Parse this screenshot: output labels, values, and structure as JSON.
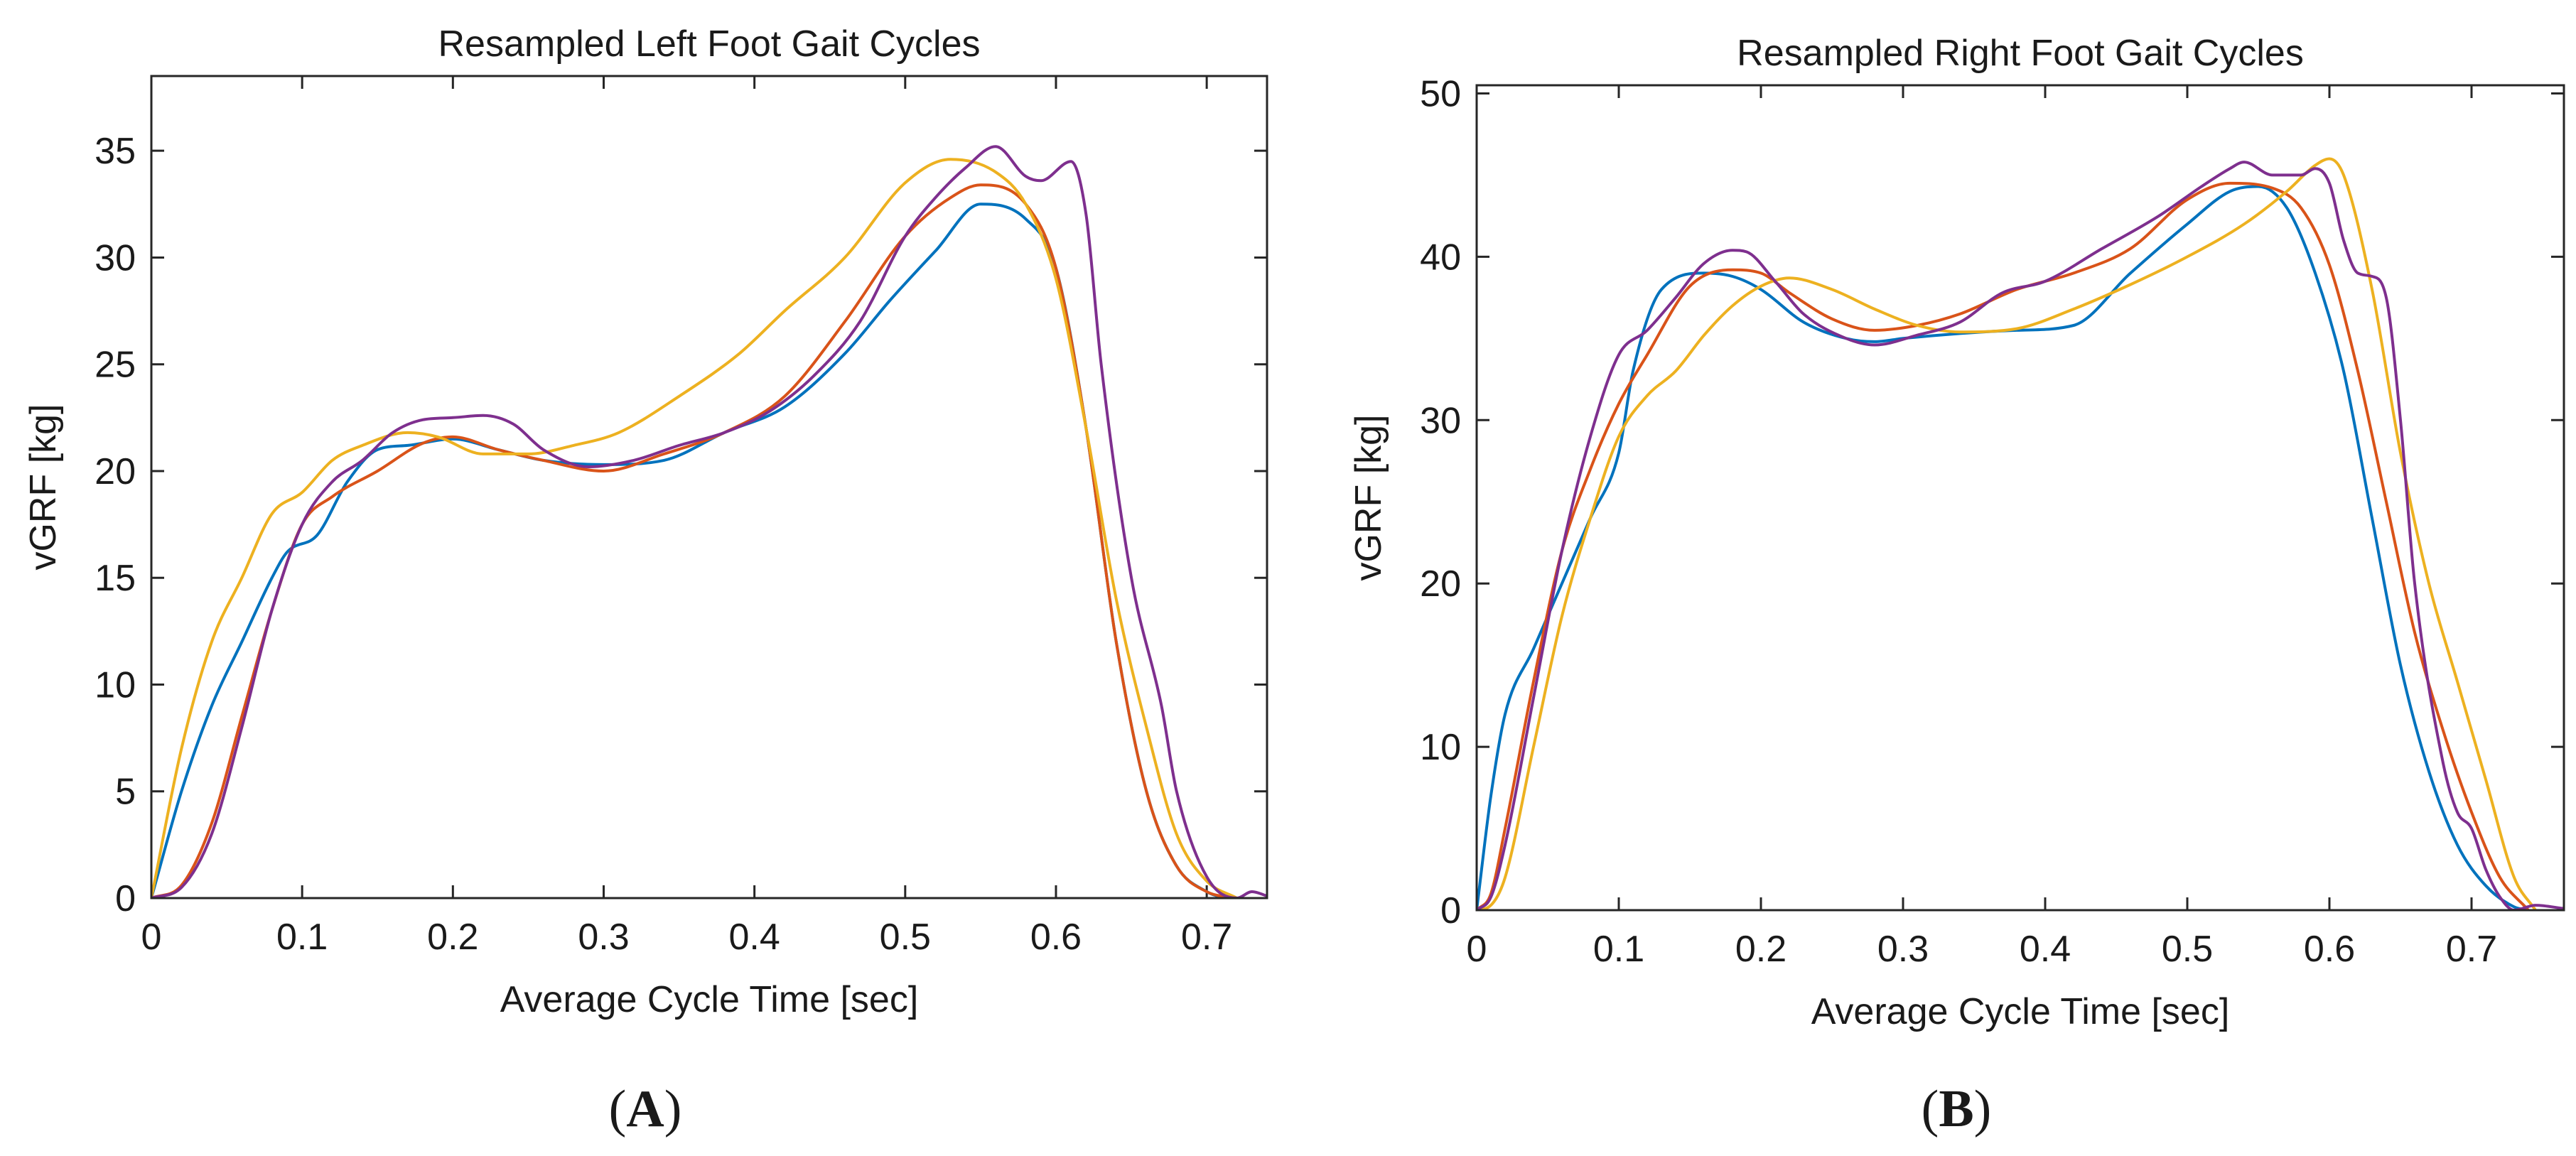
{
  "colors": {
    "blue": "#0072BD",
    "red": "#D95319",
    "yellow": "#EDB120",
    "purple": "#7E2F8E"
  },
  "panels": [
    {
      "label_open": "(",
      "label_letter": "A",
      "label_close": ")"
    },
    {
      "label_open": "(",
      "label_letter": "B",
      "label_close": ")"
    }
  ],
  "chart_data": [
    {
      "type": "line",
      "title": "Resampled Left Foot Gait Cycles",
      "xlabel": "Average Cycle Time [sec]",
      "ylabel": "vGRF [kg]",
      "xlim": [
        0,
        0.74
      ],
      "ylim": [
        0,
        38.5
      ],
      "xticks": [
        0,
        0.1,
        0.2,
        0.3,
        0.4,
        0.5,
        0.6,
        0.7
      ],
      "xtick_labels": [
        "0",
        "0.1",
        "0.2",
        "0.3",
        "0.4",
        "0.5",
        "0.6",
        "0.7"
      ],
      "yticks": [
        0,
        5,
        10,
        15,
        20,
        25,
        30,
        35
      ],
      "ytick_labels": [
        "0",
        "5",
        "10",
        "15",
        "20",
        "25",
        "30",
        "35"
      ],
      "grid": false,
      "legend": "none",
      "series": [
        {
          "color": "blue",
          "x": [
            0,
            0.02,
            0.04,
            0.06,
            0.08,
            0.09,
            0.11,
            0.13,
            0.15,
            0.17,
            0.2,
            0.23,
            0.26,
            0.3,
            0.34,
            0.38,
            0.42,
            0.46,
            0.49,
            0.52,
            0.55,
            0.58,
            0.6,
            0.62,
            0.64,
            0.66,
            0.68,
            0.7,
            0.71,
            0.72
          ],
          "y": [
            0,
            5,
            9,
            12,
            15,
            16.2,
            17,
            19.5,
            21,
            21.2,
            21.5,
            21,
            20.5,
            20.3,
            20.5,
            21.8,
            23,
            25.5,
            28,
            30.3,
            32.5,
            31.8,
            29.5,
            22,
            12,
            5,
            1.5,
            0.3,
            0.05,
            0
          ]
        },
        {
          "color": "red",
          "x": [
            0,
            0.02,
            0.04,
            0.06,
            0.08,
            0.1,
            0.12,
            0.15,
            0.18,
            0.2,
            0.23,
            0.26,
            0.3,
            0.34,
            0.38,
            0.42,
            0.46,
            0.5,
            0.53,
            0.55,
            0.58,
            0.6,
            0.62,
            0.64,
            0.66,
            0.68,
            0.7,
            0.72
          ],
          "y": [
            0,
            0.6,
            3.5,
            8.5,
            13.5,
            17.5,
            18.8,
            20,
            21.3,
            21.6,
            21,
            20.5,
            20,
            20.8,
            21.8,
            23.5,
            27,
            31,
            32.8,
            33.4,
            32.5,
            29.5,
            22,
            12,
            5,
            1.5,
            0.3,
            0
          ]
        },
        {
          "color": "yellow",
          "x": [
            0,
            0.02,
            0.04,
            0.06,
            0.08,
            0.1,
            0.12,
            0.14,
            0.17,
            0.19,
            0.22,
            0.25,
            0.28,
            0.31,
            0.35,
            0.39,
            0.42,
            0.46,
            0.5,
            0.53,
            0.56,
            0.58,
            0.6,
            0.62,
            0.64,
            0.66,
            0.68,
            0.7,
            0.72
          ],
          "y": [
            0,
            7,
            12,
            15,
            18,
            19,
            20.5,
            21.2,
            21.8,
            21.6,
            20.8,
            20.8,
            21.2,
            21.8,
            23.5,
            25.5,
            27.5,
            30,
            33.5,
            34.6,
            34,
            32.5,
            29,
            22,
            14,
            8,
            3,
            0.8,
            0
          ]
        },
        {
          "color": "purple",
          "x": [
            0,
            0.02,
            0.04,
            0.06,
            0.08,
            0.1,
            0.12,
            0.14,
            0.16,
            0.18,
            0.2,
            0.22,
            0.24,
            0.26,
            0.29,
            0.32,
            0.35,
            0.38,
            0.41,
            0.44,
            0.47,
            0.5,
            0.52,
            0.54,
            0.56,
            0.58,
            0.59,
            0.61,
            0.62,
            0.63,
            0.65,
            0.67,
            0.68,
            0.7,
            0.72,
            0.73,
            0.74
          ],
          "y": [
            0,
            0.5,
            3,
            8,
            13.5,
            17.5,
            19.5,
            20.5,
            21.8,
            22.4,
            22.5,
            22.6,
            22.2,
            21,
            20.2,
            20.5,
            21.2,
            21.8,
            22.8,
            24.5,
            27,
            31,
            32.8,
            34.2,
            35.2,
            33.8,
            33.6,
            34.5,
            32,
            25,
            15,
            9,
            5,
            1,
            0,
            0.3,
            0.1
          ]
        }
      ]
    },
    {
      "type": "line",
      "title": "Resampled Right Foot Gait Cycles",
      "xlabel": "Average Cycle Time [sec]",
      "ylabel": "vGRF [kg]",
      "xlim": [
        0,
        0.765
      ],
      "ylim": [
        0,
        50.5
      ],
      "xticks": [
        0,
        0.1,
        0.2,
        0.3,
        0.4,
        0.5,
        0.6,
        0.7
      ],
      "xtick_labels": [
        "0",
        "0.1",
        "0.2",
        "0.3",
        "0.4",
        "0.5",
        "0.6",
        "0.7"
      ],
      "yticks": [
        0,
        10,
        20,
        30,
        40,
        50
      ],
      "ytick_labels": [
        "0",
        "10",
        "20",
        "30",
        "40",
        "50"
      ],
      "grid": false,
      "legend": "none",
      "series": [
        {
          "color": "blue",
          "x": [
            0,
            0.01,
            0.02,
            0.04,
            0.06,
            0.08,
            0.1,
            0.11,
            0.13,
            0.16,
            0.18,
            0.2,
            0.23,
            0.26,
            0.28,
            0.3,
            0.34,
            0.38,
            0.42,
            0.46,
            0.5,
            0.53,
            0.55,
            0.57,
            0.59,
            0.61,
            0.63,
            0.65,
            0.67,
            0.69,
            0.71,
            0.73,
            0.74
          ],
          "y": [
            0,
            7,
            12,
            16,
            20,
            24,
            28,
            33,
            38,
            39,
            38.8,
            38,
            36,
            35,
            34.8,
            35,
            35.3,
            35.5,
            35.8,
            39,
            42,
            44,
            44.3,
            43,
            39,
            33,
            24,
            15,
            8.5,
            4,
            1.5,
            0.2,
            0
          ]
        },
        {
          "color": "red",
          "x": [
            0,
            0.01,
            0.02,
            0.04,
            0.06,
            0.08,
            0.1,
            0.12,
            0.15,
            0.18,
            0.2,
            0.22,
            0.25,
            0.28,
            0.31,
            0.34,
            0.38,
            0.42,
            0.46,
            0.5,
            0.53,
            0.56,
            0.58,
            0.6,
            0.62,
            0.64,
            0.66,
            0.68,
            0.7,
            0.72,
            0.74
          ],
          "y": [
            0,
            1,
            5,
            14,
            22,
            27,
            31,
            34,
            38.2,
            39.2,
            39,
            37.8,
            36.2,
            35.5,
            35.8,
            36.5,
            38,
            39,
            40.5,
            43.5,
            44.5,
            44.2,
            43,
            39.5,
            33,
            25,
            17,
            11,
            6,
            2,
            0
          ]
        },
        {
          "color": "yellow",
          "x": [
            0,
            0.01,
            0.02,
            0.04,
            0.06,
            0.08,
            0.1,
            0.12,
            0.14,
            0.16,
            0.18,
            0.2,
            0.22,
            0.25,
            0.28,
            0.31,
            0.34,
            0.38,
            0.42,
            0.46,
            0.5,
            0.54,
            0.57,
            0.59,
            0.6,
            0.61,
            0.63,
            0.65,
            0.67,
            0.69,
            0.71,
            0.73,
            0.745
          ],
          "y": [
            0,
            0.3,
            2,
            10,
            18,
            24,
            29,
            31.5,
            33,
            35.2,
            37,
            38.2,
            38.7,
            38,
            36.8,
            35.8,
            35.4,
            35.6,
            36.8,
            38.3,
            40,
            42,
            44,
            45.6,
            46,
            45,
            38,
            28,
            20,
            14,
            8,
            2,
            0
          ]
        },
        {
          "color": "purple",
          "x": [
            0,
            0.01,
            0.02,
            0.04,
            0.06,
            0.08,
            0.1,
            0.12,
            0.14,
            0.16,
            0.18,
            0.19,
            0.21,
            0.23,
            0.26,
            0.28,
            0.31,
            0.34,
            0.37,
            0.4,
            0.44,
            0.48,
            0.51,
            0.53,
            0.54,
            0.56,
            0.58,
            0.59,
            0.6,
            0.61,
            0.62,
            0.63,
            0.64,
            0.65,
            0.66,
            0.68,
            0.69,
            0.7,
            0.71,
            0.72,
            0.73,
            0.745,
            0.765
          ],
          "y": [
            0,
            0.8,
            4,
            13,
            22,
            29,
            34,
            35.5,
            37.5,
            39.6,
            40.4,
            40.3,
            38.5,
            36.5,
            35,
            34.6,
            35.2,
            36,
            37.8,
            38.5,
            40.5,
            42.5,
            44.3,
            45.4,
            45.8,
            45,
            45,
            45.4,
            44.5,
            41,
            39,
            38.8,
            37.5,
            30,
            20,
            9,
            6,
            5,
            2.5,
            0.8,
            0,
            0.3,
            0.1
          ]
        }
      ]
    }
  ]
}
